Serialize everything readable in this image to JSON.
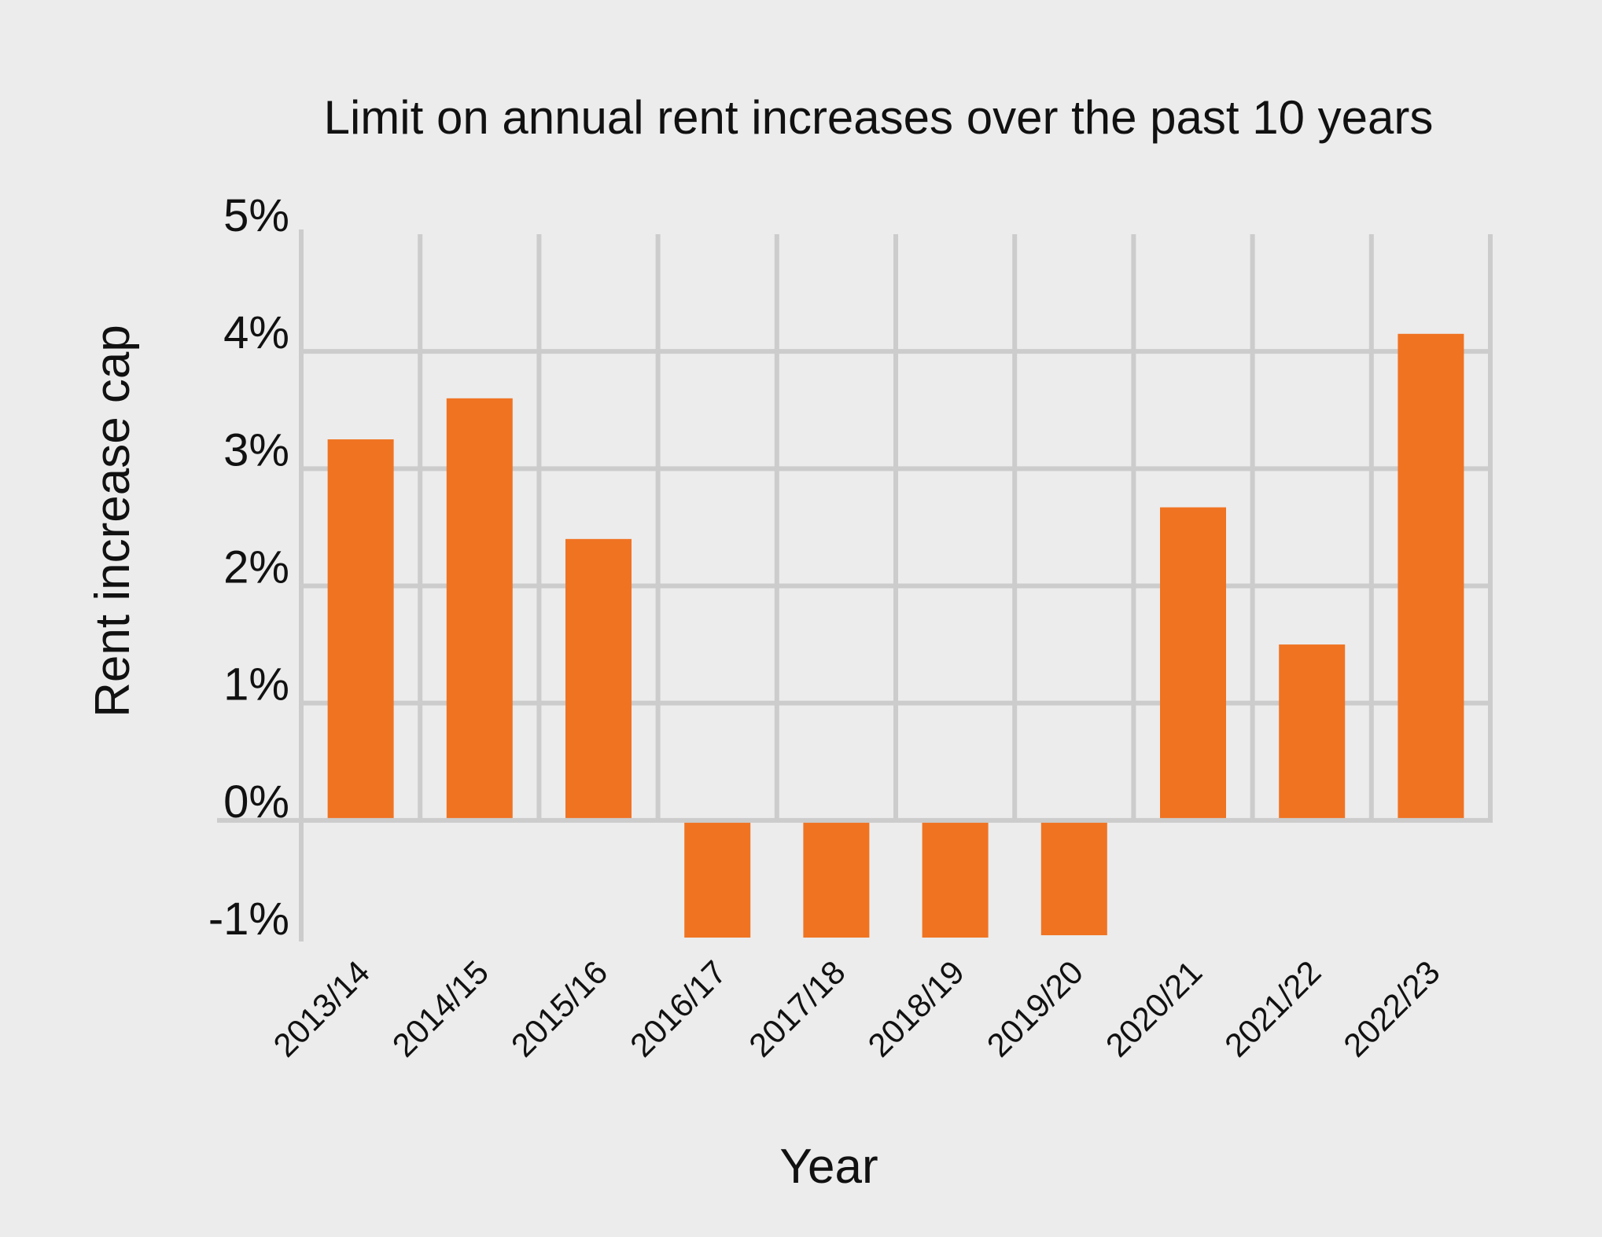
{
  "chart_data": {
    "type": "bar",
    "title": "Limit on annual rent increases over the past 10 years",
    "xlabel": "Year",
    "ylabel": "Rent increase cap",
    "categories": [
      "2013/14",
      "2014/15",
      "2015/16",
      "2016/17",
      "2017/18",
      "2018/19",
      "2019/20",
      "2020/21",
      "2021/22",
      "2022/23"
    ],
    "values": [
      3.25,
      3.6,
      2.4,
      -1.0,
      -1.0,
      -1.0,
      -0.98,
      2.67,
      1.5,
      4.15
    ],
    "ylim": [
      -1,
      5
    ],
    "yticks": [
      -1,
      0,
      1,
      2,
      3,
      4,
      5
    ],
    "ytick_labels": [
      "-1%",
      "0%",
      "1%",
      "2%",
      "3%",
      "4%",
      "5%"
    ],
    "grid": true,
    "bar_color": "#f07322",
    "grid_color": "#cccccc",
    "background_color": "#ececec"
  }
}
